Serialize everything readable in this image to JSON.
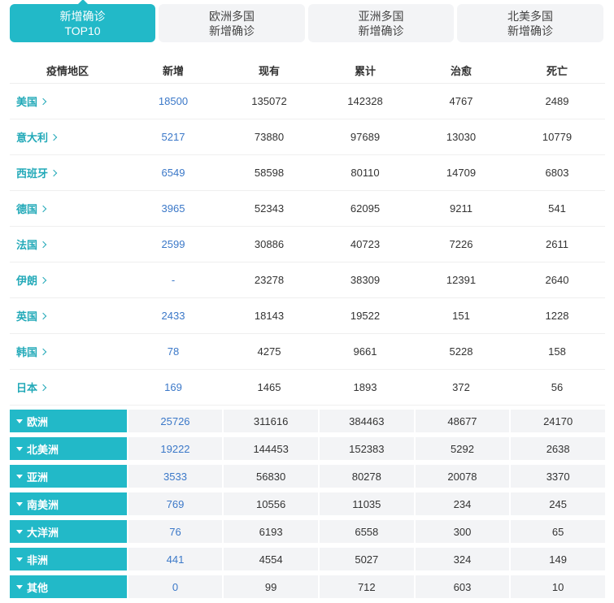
{
  "tabs": [
    {
      "line1": "新增确诊",
      "line2": "TOP10",
      "active": true
    },
    {
      "line1": "欧洲多国",
      "line2": "新增确诊",
      "active": false
    },
    {
      "line1": "亚洲多国",
      "line2": "新增确诊",
      "active": false
    },
    {
      "line1": "北美多国",
      "line2": "新增确诊",
      "active": false
    }
  ],
  "columns": [
    "疫情地区",
    "新增",
    "现有",
    "累计",
    "治愈",
    "死亡"
  ],
  "countries": [
    {
      "name": "美国",
      "new": "18500",
      "current": "135072",
      "total": "142328",
      "cured": "4767",
      "dead": "2489"
    },
    {
      "name": "意大利",
      "new": "5217",
      "current": "73880",
      "total": "97689",
      "cured": "13030",
      "dead": "10779"
    },
    {
      "name": "西班牙",
      "new": "6549",
      "current": "58598",
      "total": "80110",
      "cured": "14709",
      "dead": "6803"
    },
    {
      "name": "德国",
      "new": "3965",
      "current": "52343",
      "total": "62095",
      "cured": "9211",
      "dead": "541"
    },
    {
      "name": "法国",
      "new": "2599",
      "current": "30886",
      "total": "40723",
      "cured": "7226",
      "dead": "2611"
    },
    {
      "name": "伊朗",
      "new": "-",
      "current": "23278",
      "total": "38309",
      "cured": "12391",
      "dead": "2640"
    },
    {
      "name": "英国",
      "new": "2433",
      "current": "18143",
      "total": "19522",
      "cured": "151",
      "dead": "1228"
    },
    {
      "name": "韩国",
      "new": "78",
      "current": "4275",
      "total": "9661",
      "cured": "5228",
      "dead": "158"
    },
    {
      "name": "日本",
      "new": "169",
      "current": "1465",
      "total": "1893",
      "cured": "372",
      "dead": "56"
    }
  ],
  "continents": [
    {
      "name": "欧洲",
      "new": "25726",
      "current": "311616",
      "total": "384463",
      "cured": "48677",
      "dead": "24170"
    },
    {
      "name": "北美洲",
      "new": "19222",
      "current": "144453",
      "total": "152383",
      "cured": "5292",
      "dead": "2638"
    },
    {
      "name": "亚洲",
      "new": "3533",
      "current": "56830",
      "total": "80278",
      "cured": "20078",
      "dead": "3370"
    },
    {
      "name": "南美洲",
      "new": "769",
      "current": "10556",
      "total": "11035",
      "cured": "234",
      "dead": "245"
    },
    {
      "name": "大洋洲",
      "new": "76",
      "current": "6193",
      "total": "6558",
      "cured": "300",
      "dead": "65"
    },
    {
      "name": "非洲",
      "new": "441",
      "current": "4554",
      "total": "5027",
      "cured": "324",
      "dead": "149"
    },
    {
      "name": "其他",
      "new": "0",
      "current": "99",
      "total": "712",
      "cured": "603",
      "dead": "10"
    }
  ],
  "colors": {
    "accent": "#22b9c8",
    "link": "#22a9b8",
    "new_value": "#3b78c8"
  }
}
